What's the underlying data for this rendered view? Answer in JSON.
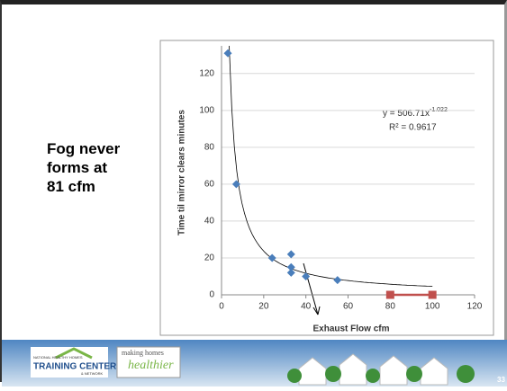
{
  "side_text": [
    "Fog never",
    "forms at",
    "81 cfm"
  ],
  "chart_data": {
    "type": "scatter",
    "xlabel": "Exhaust Flow cfm",
    "ylabel": "Time til mirror clears minutes",
    "xlim": [
      0,
      120
    ],
    "xticks": [
      0,
      20,
      40,
      60,
      80,
      100,
      120
    ],
    "ylim": [
      0,
      135
    ],
    "yticks": [
      0,
      20,
      40,
      60,
      80,
      100,
      120
    ],
    "grid": true,
    "series": [
      {
        "color": "#4a7ebb",
        "marker": "diamond",
        "x": [
          3,
          7,
          24,
          33,
          33,
          33,
          40,
          55
        ],
        "values": [
          131,
          60,
          20,
          22,
          15,
          12,
          10,
          8
        ]
      },
      {
        "color": "#c0504d",
        "marker": "square",
        "line": true,
        "x": [
          80,
          100
        ],
        "values": [
          0,
          0
        ]
      }
    ],
    "trendline": {
      "base": "y = 506.71x",
      "exponent": "-1.022",
      "r2": "R² = 0.9617"
    }
  },
  "footer": {
    "logo_top": "NATIONAL HEALTHY HOMES",
    "logo_main": "TRAINING CENTER",
    "logo_sub": "& NETWORK",
    "tag_top": "making homes",
    "tag_main": "healthier",
    "page": "33"
  }
}
